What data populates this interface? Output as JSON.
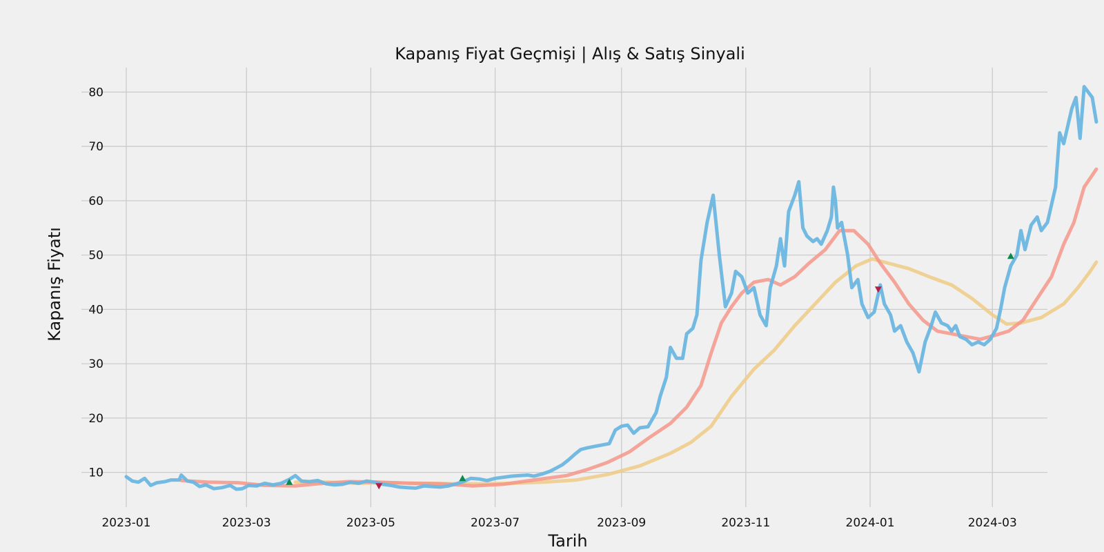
{
  "chart_data": {
    "type": "line",
    "title": "Kapanış Fiyat Geçmişi | Alış & Satış Sinyali",
    "xlabel": "Tarih",
    "ylabel": "Kapanış Fiyatı",
    "x_ticks": [
      "2023-01",
      "2023-03",
      "2023-05",
      "2023-07",
      "2023-09",
      "2023-11",
      "2024-01",
      "2024-03"
    ],
    "y_ticks": [
      10,
      20,
      30,
      40,
      50,
      60,
      70,
      80
    ],
    "xlim": [
      "2022-12-10",
      "2024-03-28"
    ],
    "ylim": [
      3.6,
      84.5
    ],
    "grid": true,
    "colors": {
      "background": "#f0f0f0",
      "grid": "#cbcbcb",
      "price": "#6cb6e0",
      "ma_short": "#f4978a",
      "ma_long": "#efcb86",
      "buy_marker": "#0c8a4e",
      "sell_marker": "#b0204a"
    },
    "series": [
      {
        "key": "price",
        "points": [
          [
            "2023-01-01",
            9.2
          ],
          [
            "2023-01-04",
            8.4
          ],
          [
            "2023-01-07",
            8.2
          ],
          [
            "2023-01-10",
            8.9
          ],
          [
            "2023-01-13",
            7.6
          ],
          [
            "2023-01-16",
            8.1
          ],
          [
            "2023-01-20",
            8.3
          ],
          [
            "2023-01-23",
            8.6
          ],
          [
            "2023-01-27",
            8.6
          ],
          [
            "2023-01-28",
            9.5
          ],
          [
            "2023-01-31",
            8.4
          ],
          [
            "2023-02-03",
            8.2
          ],
          [
            "2023-02-06",
            7.4
          ],
          [
            "2023-02-09",
            7.7
          ],
          [
            "2023-02-13",
            7.0
          ],
          [
            "2023-02-17",
            7.2
          ],
          [
            "2023-02-21",
            7.6
          ],
          [
            "2023-02-24",
            6.9
          ],
          [
            "2023-02-27",
            7.0
          ],
          [
            "2023-03-02",
            7.6
          ],
          [
            "2023-03-06",
            7.5
          ],
          [
            "2023-03-10",
            8.0
          ],
          [
            "2023-03-14",
            7.7
          ],
          [
            "2023-03-18",
            8.0
          ],
          [
            "2023-03-22",
            8.7
          ],
          [
            "2023-03-25",
            9.4
          ],
          [
            "2023-03-28",
            8.4
          ],
          [
            "2023-04-01",
            8.3
          ],
          [
            "2023-04-05",
            8.5
          ],
          [
            "2023-04-09",
            7.9
          ],
          [
            "2023-04-13",
            7.7
          ],
          [
            "2023-04-17",
            7.8
          ],
          [
            "2023-04-21",
            8.2
          ],
          [
            "2023-04-25",
            8.0
          ],
          [
            "2023-04-29",
            8.4
          ],
          [
            "2023-05-03",
            8.2
          ],
          [
            "2023-05-07",
            7.8
          ],
          [
            "2023-05-11",
            7.6
          ],
          [
            "2023-05-15",
            7.3
          ],
          [
            "2023-05-19",
            7.2
          ],
          [
            "2023-05-23",
            7.1
          ],
          [
            "2023-05-27",
            7.5
          ],
          [
            "2023-05-31",
            7.4
          ],
          [
            "2023-06-04",
            7.3
          ],
          [
            "2023-06-08",
            7.5
          ],
          [
            "2023-06-12",
            7.9
          ],
          [
            "2023-06-16",
            8.4
          ],
          [
            "2023-06-19",
            8.9
          ],
          [
            "2023-06-23",
            8.8
          ],
          [
            "2023-06-27",
            8.5
          ],
          [
            "2023-07-01",
            8.9
          ],
          [
            "2023-07-05",
            9.1
          ],
          [
            "2023-07-09",
            9.3
          ],
          [
            "2023-07-13",
            9.4
          ],
          [
            "2023-07-17",
            9.5
          ],
          [
            "2023-07-20",
            9.3
          ],
          [
            "2023-07-24",
            9.7
          ],
          [
            "2023-07-28",
            10.2
          ],
          [
            "2023-07-31",
            10.8
          ],
          [
            "2023-08-03",
            11.4
          ],
          [
            "2023-08-06",
            12.3
          ],
          [
            "2023-08-09",
            13.3
          ],
          [
            "2023-08-12",
            14.2
          ],
          [
            "2023-08-15",
            14.5
          ],
          [
            "2023-08-19",
            14.8
          ],
          [
            "2023-08-22",
            15.0
          ],
          [
            "2023-08-26",
            15.3
          ],
          [
            "2023-08-29",
            17.8
          ],
          [
            "2023-09-01",
            18.5
          ],
          [
            "2023-09-04",
            18.7
          ],
          [
            "2023-09-07",
            17.2
          ],
          [
            "2023-09-10",
            18.2
          ],
          [
            "2023-09-14",
            18.4
          ],
          [
            "2023-09-18",
            21.0
          ],
          [
            "2023-09-20",
            24.0
          ],
          [
            "2023-09-23",
            27.5
          ],
          [
            "2023-09-25",
            33.0
          ],
          [
            "2023-09-28",
            31.0
          ],
          [
            "2023-10-01",
            31.0
          ],
          [
            "2023-10-03",
            35.5
          ],
          [
            "2023-10-06",
            36.5
          ],
          [
            "2023-10-08",
            39.0
          ],
          [
            "2023-10-10",
            49.0
          ],
          [
            "2023-10-13",
            56.0
          ],
          [
            "2023-10-16",
            61.0
          ],
          [
            "2023-10-19",
            50.0
          ],
          [
            "2023-10-22",
            40.5
          ],
          [
            "2023-10-25",
            43.0
          ],
          [
            "2023-10-27",
            47.0
          ],
          [
            "2023-10-30",
            46.0
          ],
          [
            "2023-11-02",
            43.0
          ],
          [
            "2023-11-05",
            44.0
          ],
          [
            "2023-11-08",
            39.0
          ],
          [
            "2023-11-11",
            37.0
          ],
          [
            "2023-11-13",
            44.0
          ],
          [
            "2023-11-16",
            48.0
          ],
          [
            "2023-11-18",
            53.0
          ],
          [
            "2023-11-20",
            48.0
          ],
          [
            "2023-11-22",
            58.0
          ],
          [
            "2023-11-25",
            61.0
          ],
          [
            "2023-11-27",
            63.5
          ],
          [
            "2023-11-29",
            55.0
          ],
          [
            "2023-12-01",
            53.5
          ],
          [
            "2023-12-04",
            52.5
          ],
          [
            "2023-12-06",
            53.0
          ],
          [
            "2023-12-08",
            52.0
          ],
          [
            "2023-12-11",
            54.5
          ],
          [
            "2023-12-13",
            57.0
          ],
          [
            "2023-12-14",
            62.5
          ],
          [
            "2023-12-15",
            60.0
          ],
          [
            "2023-12-16",
            55.0
          ],
          [
            "2023-12-18",
            56.0
          ],
          [
            "2023-12-21",
            50.0
          ],
          [
            "2023-12-23",
            44.0
          ],
          [
            "2023-12-26",
            45.5
          ],
          [
            "2023-12-28",
            41.0
          ],
          [
            "2023-12-31",
            38.5
          ],
          [
            "2024-01-03",
            39.5
          ],
          [
            "2024-01-06",
            44.5
          ],
          [
            "2024-01-08",
            41.0
          ],
          [
            "2024-01-11",
            39.0
          ],
          [
            "2024-01-13",
            36.0
          ],
          [
            "2024-01-16",
            37.0
          ],
          [
            "2024-01-19",
            34.0
          ],
          [
            "2024-01-22",
            32.0
          ],
          [
            "2024-01-25",
            28.5
          ],
          [
            "2024-01-28",
            34.0
          ],
          [
            "2024-01-31",
            37.0
          ],
          [
            "2024-02-02",
            39.5
          ],
          [
            "2024-02-05",
            37.5
          ],
          [
            "2024-02-08",
            37.0
          ],
          [
            "2024-02-10",
            36.0
          ],
          [
            "2024-02-12",
            37.0
          ],
          [
            "2024-02-14",
            35.0
          ],
          [
            "2024-02-17",
            34.5
          ],
          [
            "2024-02-20",
            33.5
          ],
          [
            "2024-02-23",
            34.0
          ],
          [
            "2024-02-26",
            33.5
          ],
          [
            "2024-02-29",
            34.5
          ],
          [
            "2024-03-03",
            36.5
          ],
          [
            "2024-03-05",
            40.0
          ],
          [
            "2024-03-07",
            44.0
          ],
          [
            "2024-03-10",
            48.0
          ],
          [
            "2024-03-13",
            50.0
          ],
          [
            "2024-03-15",
            54.5
          ],
          [
            "2024-03-17",
            51.0
          ],
          [
            "2024-03-20",
            55.5
          ],
          [
            "2024-03-23",
            57.0
          ],
          [
            "2024-03-25",
            54.5
          ],
          [
            "2024-03-28",
            56.0
          ],
          [
            "2024-04-01",
            62.5
          ],
          [
            "2024-04-03",
            72.5
          ],
          [
            "2024-04-05",
            70.5
          ],
          [
            "2024-04-09",
            77.0
          ],
          [
            "2024-04-11",
            79.0
          ],
          [
            "2024-04-13",
            71.5
          ],
          [
            "2024-04-15",
            81.0
          ],
          [
            "2024-04-17",
            80.0
          ],
          [
            "2024-04-19",
            79.0
          ],
          [
            "2024-04-21",
            74.5
          ]
        ]
      },
      {
        "key": "ma_short",
        "points": [
          [
            "2023-01-28",
            8.5
          ],
          [
            "2023-02-10",
            8.2
          ],
          [
            "2023-02-25",
            8.1
          ],
          [
            "2023-03-10",
            7.6
          ],
          [
            "2023-03-25",
            7.5
          ],
          [
            "2023-04-05",
            7.9
          ],
          [
            "2023-04-20",
            8.3
          ],
          [
            "2023-05-05",
            8.2
          ],
          [
            "2023-05-20",
            8.0
          ],
          [
            "2023-06-05",
            7.9
          ],
          [
            "2023-06-20",
            7.5
          ],
          [
            "2023-07-05",
            7.8
          ],
          [
            "2023-07-20",
            8.6
          ],
          [
            "2023-08-05",
            9.4
          ],
          [
            "2023-08-15",
            10.5
          ],
          [
            "2023-08-25",
            11.8
          ],
          [
            "2023-09-05",
            13.8
          ],
          [
            "2023-09-15",
            16.5
          ],
          [
            "2023-09-25",
            19.0
          ],
          [
            "2023-10-03",
            22.0
          ],
          [
            "2023-10-10",
            26.0
          ],
          [
            "2023-10-15",
            32.0
          ],
          [
            "2023-10-20",
            37.5
          ],
          [
            "2023-10-25",
            40.5
          ],
          [
            "2023-10-30",
            43.0
          ],
          [
            "2023-11-05",
            45.0
          ],
          [
            "2023-11-12",
            45.5
          ],
          [
            "2023-11-18",
            44.5
          ],
          [
            "2023-11-25",
            46.0
          ],
          [
            "2023-12-02",
            48.5
          ],
          [
            "2023-12-10",
            51.0
          ],
          [
            "2023-12-17",
            54.5
          ],
          [
            "2023-12-24",
            54.5
          ],
          [
            "2023-12-31",
            52.0
          ],
          [
            "2024-01-06",
            48.5
          ],
          [
            "2024-01-13",
            45.0
          ],
          [
            "2024-01-20",
            41.0
          ],
          [
            "2024-01-27",
            38.0
          ],
          [
            "2024-02-03",
            36.0
          ],
          [
            "2024-02-10",
            35.5
          ],
          [
            "2024-02-17",
            35.0
          ],
          [
            "2024-02-24",
            34.5
          ],
          [
            "2024-03-02",
            35.2
          ],
          [
            "2024-03-09",
            36.0
          ],
          [
            "2024-03-16",
            38.0
          ],
          [
            "2024-03-23",
            42.0
          ],
          [
            "2024-03-30",
            46.0
          ],
          [
            "2024-04-05",
            52.0
          ],
          [
            "2024-04-10",
            56.0
          ],
          [
            "2024-04-15",
            62.5
          ],
          [
            "2024-04-21",
            65.8
          ]
        ]
      },
      {
        "key": "ma_long",
        "points": [
          [
            "2023-03-25",
            8.2
          ],
          [
            "2023-04-10",
            8.2
          ],
          [
            "2023-04-25",
            8.0
          ],
          [
            "2023-05-10",
            8.1
          ],
          [
            "2023-05-25",
            8.0
          ],
          [
            "2023-06-10",
            7.9
          ],
          [
            "2023-06-25",
            7.9
          ],
          [
            "2023-07-10",
            8.0
          ],
          [
            "2023-07-25",
            8.2
          ],
          [
            "2023-08-10",
            8.6
          ],
          [
            "2023-08-25",
            9.6
          ],
          [
            "2023-09-10",
            11.2
          ],
          [
            "2023-09-25",
            13.5
          ],
          [
            "2023-10-05",
            15.5
          ],
          [
            "2023-10-15",
            18.5
          ],
          [
            "2023-10-25",
            24.0
          ],
          [
            "2023-11-05",
            29.0
          ],
          [
            "2023-11-15",
            32.5
          ],
          [
            "2023-11-25",
            37.0
          ],
          [
            "2023-12-05",
            41.0
          ],
          [
            "2023-12-15",
            45.0
          ],
          [
            "2023-12-25",
            48.0
          ],
          [
            "2024-01-02",
            49.3
          ],
          [
            "2024-01-10",
            48.5
          ],
          [
            "2024-01-20",
            47.5
          ],
          [
            "2024-01-30",
            46.0
          ],
          [
            "2024-02-10",
            44.5
          ],
          [
            "2024-02-20",
            42.0
          ],
          [
            "2024-03-01",
            39.0
          ],
          [
            "2024-03-08",
            37.3
          ],
          [
            "2024-03-15",
            37.5
          ],
          [
            "2024-03-25",
            38.5
          ],
          [
            "2024-04-05",
            41.0
          ],
          [
            "2024-04-12",
            44.0
          ],
          [
            "2024-04-18",
            47.0
          ],
          [
            "2024-04-21",
            48.7
          ]
        ]
      }
    ],
    "signals": [
      {
        "type": "buy",
        "date": "2023-03-22",
        "value": 8.2
      },
      {
        "type": "sell",
        "date": "2023-05-05",
        "value": 7.5
      },
      {
        "type": "buy",
        "date": "2023-06-15",
        "value": 8.9
      },
      {
        "type": "sell",
        "date": "2024-01-05",
        "value": 43.7
      },
      {
        "type": "buy",
        "date": "2024-03-10",
        "value": 49.8
      }
    ]
  }
}
